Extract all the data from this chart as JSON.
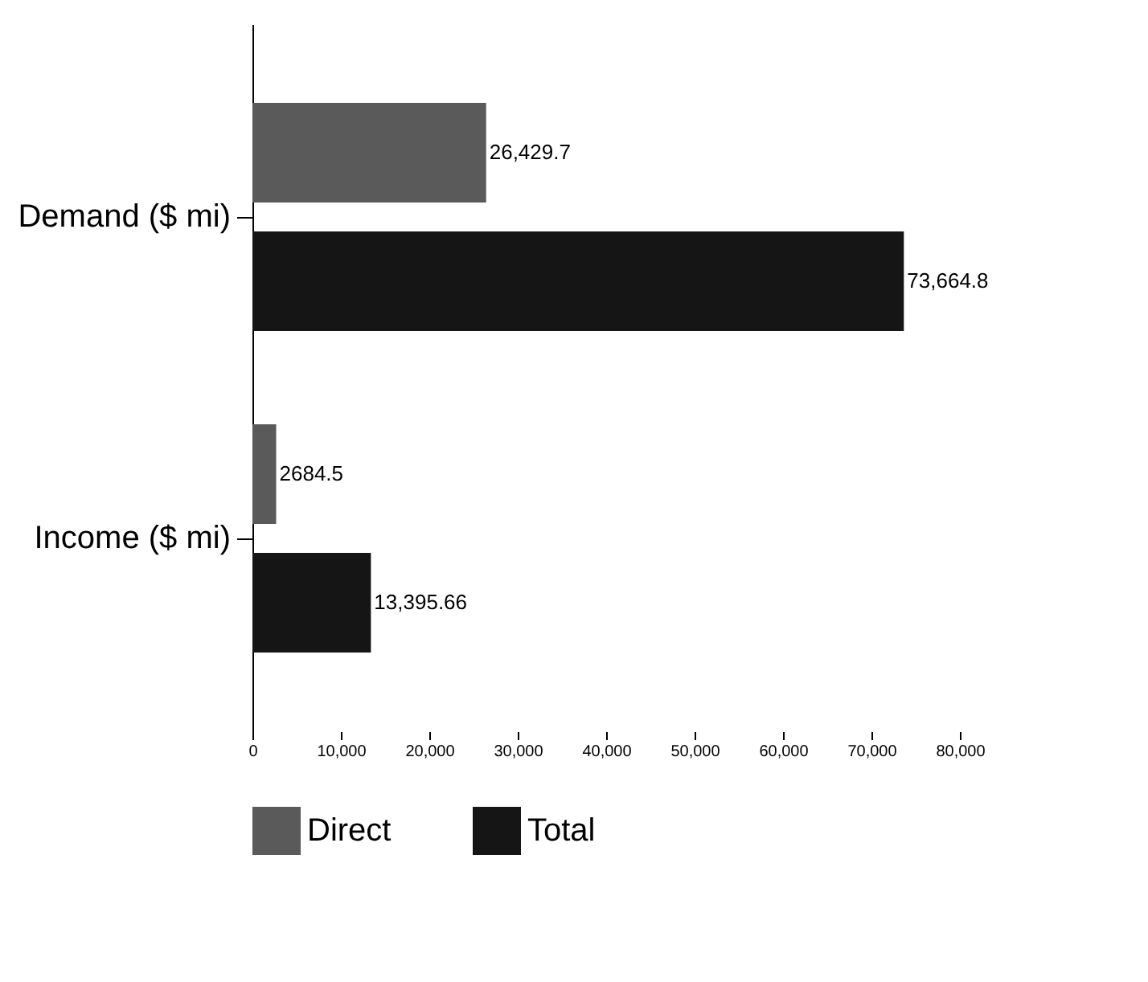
{
  "chart_data": {
    "type": "bar",
    "orientation": "horizontal",
    "categories": [
      "Demand ($ mi)",
      "Income ($ mi)"
    ],
    "series": [
      {
        "name": "Direct",
        "color": "#5a5a5a",
        "values": [
          26429.7,
          2684.5
        ],
        "value_labels": [
          "26,429.7",
          "2684.5"
        ]
      },
      {
        "name": "Total",
        "color": "#151515",
        "values": [
          73664.8,
          13395.66
        ],
        "value_labels": [
          "73,664.8",
          "13,395.66"
        ]
      }
    ],
    "xlim": [
      0,
      80000
    ],
    "xticks": [
      0,
      {
        "value": 10000,
        "label": "10,000"
      },
      {
        "value": 20000,
        "label": "20,000"
      },
      {
        "value": 30000,
        "label": "30,000"
      },
      {
        "value": 40000,
        "label": "40,000"
      },
      {
        "value": 50000,
        "label": "50,000"
      },
      {
        "value": 60000,
        "label": "60,000"
      },
      {
        "value": 70000,
        "label": "70,000"
      },
      {
        "value": 80000,
        "label": "80,000"
      }
    ],
    "grid": false,
    "legend": "bottom"
  }
}
